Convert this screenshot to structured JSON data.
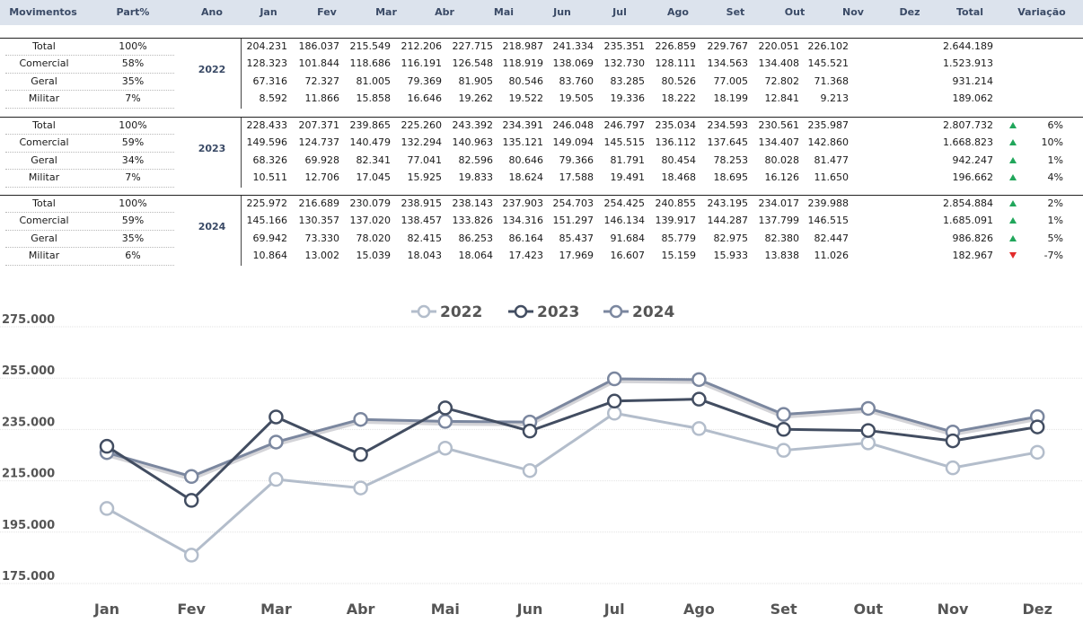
{
  "table": {
    "headers": [
      "Movimentos",
      "Part%",
      "Ano",
      "Jan",
      "Fev",
      "Mar",
      "Abr",
      "Mai",
      "Jun",
      "Jul",
      "Ago",
      "Set",
      "Out",
      "Nov",
      "Dez",
      "Total",
      "Variação"
    ],
    "blocks": [
      {
        "year": "2022",
        "rows": [
          {
            "label": "Total",
            "part": "100%",
            "values": [
              "204.231",
              "186.037",
              "215.549",
              "212.206",
              "227.715",
              "218.987",
              "241.334",
              "235.351",
              "226.859",
              "229.767",
              "220.051",
              "226.102"
            ],
            "total": "2.644.189",
            "trend": "",
            "var": ""
          },
          {
            "label": "Comercial",
            "part": "58%",
            "values": [
              "128.323",
              "101.844",
              "118.686",
              "116.191",
              "126.548",
              "118.919",
              "138.069",
              "132.730",
              "128.111",
              "134.563",
              "134.408",
              "145.521"
            ],
            "total": "1.523.913",
            "trend": "",
            "var": ""
          },
          {
            "label": "Geral",
            "part": "35%",
            "values": [
              "67.316",
              "72.327",
              "81.005",
              "79.369",
              "81.905",
              "80.546",
              "83.760",
              "83.285",
              "80.526",
              "77.005",
              "72.802",
              "71.368"
            ],
            "total": "931.214",
            "trend": "",
            "var": ""
          },
          {
            "label": "Militar",
            "part": "7%",
            "values": [
              "8.592",
              "11.866",
              "15.858",
              "16.646",
              "19.262",
              "19.522",
              "19.505",
              "19.336",
              "18.222",
              "18.199",
              "12.841",
              "9.213"
            ],
            "total": "189.062",
            "trend": "",
            "var": ""
          }
        ]
      },
      {
        "year": "2023",
        "rows": [
          {
            "label": "Total",
            "part": "100%",
            "values": [
              "228.433",
              "207.371",
              "239.865",
              "225.260",
              "243.392",
              "234.391",
              "246.048",
              "246.797",
              "235.034",
              "234.593",
              "230.561",
              "235.987"
            ],
            "total": "2.807.732",
            "trend": "up",
            "var": "6%"
          },
          {
            "label": "Comercial",
            "part": "59%",
            "values": [
              "149.596",
              "124.737",
              "140.479",
              "132.294",
              "140.963",
              "135.121",
              "149.094",
              "145.515",
              "136.112",
              "137.645",
              "134.407",
              "142.860"
            ],
            "total": "1.668.823",
            "trend": "up",
            "var": "10%"
          },
          {
            "label": "Geral",
            "part": "34%",
            "values": [
              "68.326",
              "69.928",
              "82.341",
              "77.041",
              "82.596",
              "80.646",
              "79.366",
              "81.791",
              "80.454",
              "78.253",
              "80.028",
              "81.477"
            ],
            "total": "942.247",
            "trend": "up",
            "var": "1%"
          },
          {
            "label": "Militar",
            "part": "7%",
            "values": [
              "10.511",
              "12.706",
              "17.045",
              "15.925",
              "19.833",
              "18.624",
              "17.588",
              "19.491",
              "18.468",
              "18.695",
              "16.126",
              "11.650"
            ],
            "total": "196.662",
            "trend": "up",
            "var": "4%"
          }
        ]
      },
      {
        "year": "2024",
        "rows": [
          {
            "label": "Total",
            "part": "100%",
            "values": [
              "225.972",
              "216.689",
              "230.079",
              "238.915",
              "238.143",
              "237.903",
              "254.703",
              "254.425",
              "240.855",
              "243.195",
              "234.017",
              "239.988"
            ],
            "total": "2.854.884",
            "trend": "up",
            "var": "2%"
          },
          {
            "label": "Comercial",
            "part": "59%",
            "values": [
              "145.166",
              "130.357",
              "137.020",
              "138.457",
              "133.826",
              "134.316",
              "151.297",
              "146.134",
              "139.917",
              "144.287",
              "137.799",
              "146.515"
            ],
            "total": "1.685.091",
            "trend": "up",
            "var": "1%"
          },
          {
            "label": "Geral",
            "part": "35%",
            "values": [
              "69.942",
              "73.330",
              "78.020",
              "82.415",
              "86.253",
              "86.164",
              "85.437",
              "91.684",
              "85.779",
              "82.975",
              "82.380",
              "82.447"
            ],
            "total": "986.826",
            "trend": "up",
            "var": "5%"
          },
          {
            "label": "Militar",
            "part": "6%",
            "values": [
              "10.864",
              "13.002",
              "15.039",
              "18.043",
              "18.064",
              "17.423",
              "17.969",
              "16.607",
              "15.159",
              "15.933",
              "13.838",
              "11.026"
            ],
            "total": "182.967",
            "trend": "down",
            "var": "-7%"
          }
        ]
      }
    ]
  },
  "colors": {
    "header_bg": "#dce3ed",
    "header_text": "#3a4a66",
    "series": [
      "#b3bdcb",
      "#424d61",
      "#7b879f"
    ],
    "up": "#21a65b",
    "down": "#e22b2b"
  },
  "chart_data": {
    "type": "line",
    "categories": [
      "Jan",
      "Fev",
      "Mar",
      "Abr",
      "Mai",
      "Jun",
      "Jul",
      "Ago",
      "Set",
      "Out",
      "Nov",
      "Dez"
    ],
    "ylim": [
      175000,
      275000
    ],
    "yticks": [
      175000,
      195000,
      215000,
      235000,
      255000,
      275000
    ],
    "ytick_labels": [
      "175.000",
      "195.000",
      "215.000",
      "235.000",
      "255.000",
      "275.000"
    ],
    "grid": true,
    "legend": "top-center",
    "series": [
      {
        "name": "2022",
        "values": [
          204231,
          186037,
          215549,
          212206,
          227715,
          218987,
          241334,
          235351,
          226859,
          229767,
          220051,
          226102
        ]
      },
      {
        "name": "2023",
        "values": [
          228433,
          207371,
          239865,
          225260,
          243392,
          234391,
          246048,
          246797,
          235034,
          234593,
          230561,
          235987
        ]
      },
      {
        "name": "2024",
        "values": [
          225972,
          216689,
          230079,
          238915,
          238143,
          237903,
          254703,
          254425,
          240855,
          243195,
          234017,
          239988
        ]
      }
    ]
  }
}
